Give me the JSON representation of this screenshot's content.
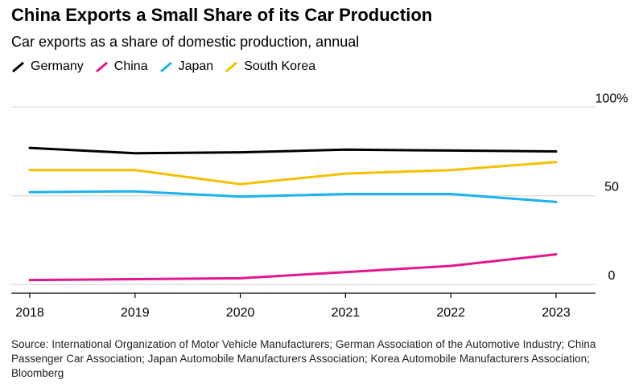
{
  "chart_data": {
    "type": "line",
    "title": "China Exports a Small Share of its Car Production",
    "subtitle": "Car exports as a share of domestic production, annual",
    "x": [
      "2018",
      "2019",
      "2020",
      "2021",
      "2022",
      "2023"
    ],
    "y_ticks": [
      {
        "value": 100,
        "label": "100%"
      },
      {
        "value": 50,
        "label": "50"
      },
      {
        "value": 0,
        "label": "0"
      }
    ],
    "ylim": [
      -4,
      106
    ],
    "series": [
      {
        "name": "Germany",
        "color": "#000000",
        "values": [
          77,
          74,
          74.5,
          76,
          75.5,
          75
        ]
      },
      {
        "name": "China",
        "color": "#e3178f",
        "values": [
          2.5,
          3,
          3.5,
          7,
          10.5,
          17
        ]
      },
      {
        "name": "Japan",
        "color": "#1ab2ef",
        "values": [
          52,
          52.5,
          49.5,
          51,
          51,
          46.5
        ]
      },
      {
        "name": "South Korea",
        "color": "#f5c000",
        "values": [
          64.5,
          64.5,
          56.5,
          62.5,
          64.5,
          69
        ]
      }
    ],
    "source": "Source: International Organization of Motor Vehicle Manufacturers; German Association of the Automotive Industry; China Passenger Car Association; Japan Automobile Manufacturers Association; Korea Automobile Manufacturers Association; Bloomberg"
  }
}
